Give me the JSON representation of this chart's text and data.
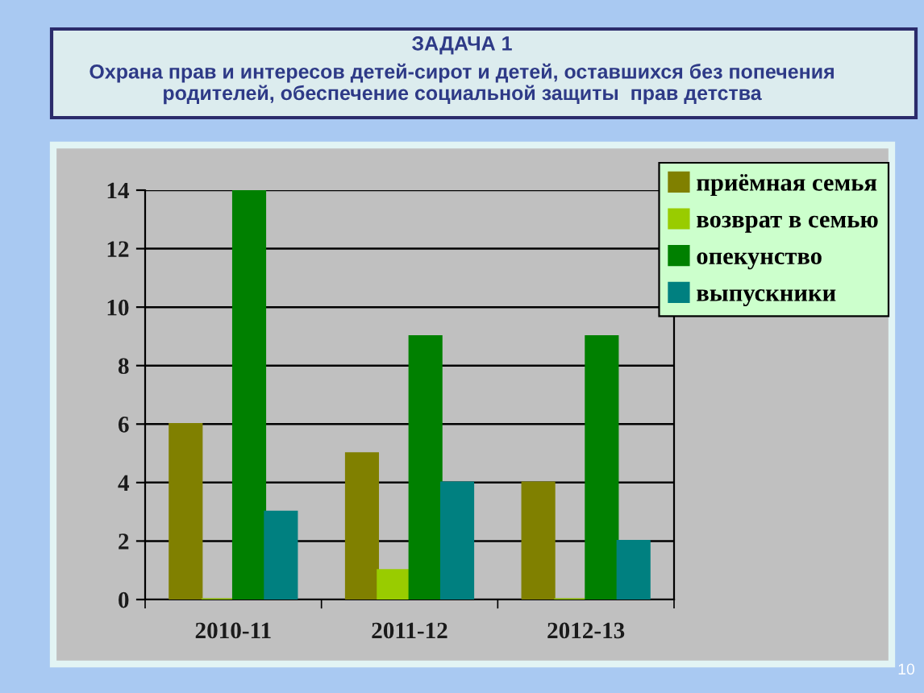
{
  "chart_data": {
    "type": "bar",
    "title": "ЗАДАЧА 1",
    "subtitle": "Охрана прав и интересов детей-сирот и детей, оставшихся без попечения\nродителей, обеспечение социальной защиты  прав детства",
    "categories": [
      "2010-11",
      "2011-12",
      "2012-13"
    ],
    "series": [
      {
        "name": "приёмная семья",
        "color": "#808000",
        "values": [
          6,
          5,
          4
        ]
      },
      {
        "name": "возврат в семью",
        "color": "#99cc00",
        "values": [
          0,
          1,
          0
        ]
      },
      {
        "name": "опекунство",
        "color": "#008000",
        "values": [
          14,
          9,
          9
        ]
      },
      {
        "name": "выпускники",
        "color": "#008080",
        "values": [
          3,
          4,
          2
        ]
      }
    ],
    "ylim": [
      0,
      14
    ],
    "yticks": [
      0,
      2,
      4,
      6,
      8,
      10,
      12,
      14
    ],
    "grid": "y",
    "legend": "top right",
    "annotations": [
      "10"
    ]
  }
}
